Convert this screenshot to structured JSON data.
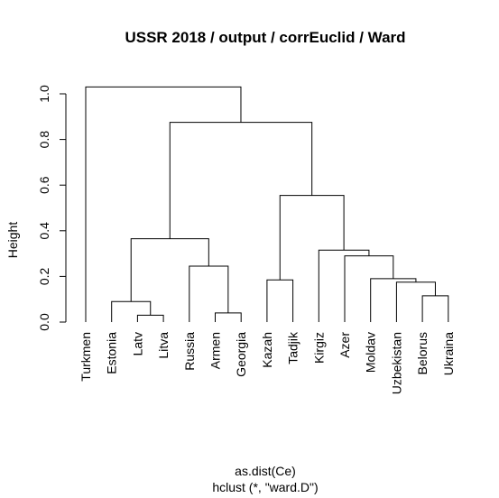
{
  "chart_data": {
    "type": "dendrogram",
    "title": "USSR 2018 / output / corrEuclid / Ward",
    "ylabel": "Height",
    "xlabel": "as.dist(Ce)",
    "sub": "hclust (*, \"ward.D\")",
    "ylim": [
      0,
      1.03
    ],
    "yticks": [
      0.0,
      0.2,
      0.4,
      0.6,
      0.8,
      1.0
    ],
    "ytick_labels": [
      "0.0",
      "0.2",
      "0.4",
      "0.6",
      "0.8",
      "1.0"
    ],
    "leaves": [
      "Turkmen",
      "Estonia",
      "Latv",
      "Litva",
      "Russia",
      "Armen",
      "Georgia",
      "Kazah",
      "Tadjik",
      "Kirgiz",
      "Azer",
      "Moldav",
      "Uzbekistan",
      "Belorus",
      "Ukraina"
    ],
    "merges": [
      {
        "left": "Latv",
        "right": "Litva",
        "height": 0.03
      },
      {
        "left": "Armen",
        "right": "Georgia",
        "height": 0.04
      },
      {
        "left": "Estonia",
        "right": "1",
        "height": 0.09
      },
      {
        "left": "Belorus",
        "right": "Ukraina",
        "height": 0.115
      },
      {
        "left": "Kazah",
        "right": "Tadjik",
        "height": 0.185
      },
      {
        "left": "Uzbekistan",
        "right": "4",
        "height": 0.175
      },
      {
        "left": "Moldav",
        "right": "6",
        "height": 0.19
      },
      {
        "left": "Russia",
        "right": "2",
        "height": 0.245
      },
      {
        "left": "Azer",
        "right": "7",
        "height": 0.29
      },
      {
        "left": "Kirgiz",
        "right": "9",
        "height": 0.315
      },
      {
        "left": "3",
        "right": "8",
        "height": 0.365
      },
      {
        "left": "5",
        "right": "10",
        "height": 0.555
      },
      {
        "left": "11",
        "right": "12",
        "height": 0.875
      },
      {
        "left": "Turkmen",
        "right": "13",
        "height": 1.03
      }
    ]
  }
}
